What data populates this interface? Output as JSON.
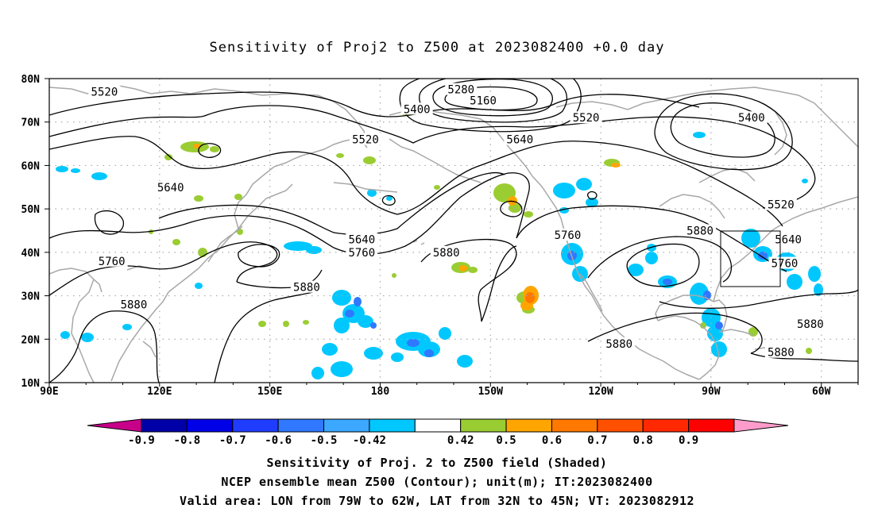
{
  "title": "Sensitivity of Proj2 to Z500 at 2023082400 +0.0 day",
  "lat_labels": [
    "80N",
    "70N",
    "60N",
    "50N",
    "40N",
    "30N",
    "20N",
    "10N"
  ],
  "lon_labels": [
    "90E",
    "120E",
    "150E",
    "180",
    "150W",
    "120W",
    "90W",
    "60W"
  ],
  "contour_labels": [
    {
      "text": "5520",
      "lon": 105,
      "lat": 77
    },
    {
      "text": "5280",
      "lon": -158,
      "lat": 77.5
    },
    {
      "text": "5160",
      "lon": -152,
      "lat": 75
    },
    {
      "text": "5400",
      "lon": -170,
      "lat": 73
    },
    {
      "text": "5520",
      "lon": -124,
      "lat": 71
    },
    {
      "text": "5400",
      "lon": -79,
      "lat": 71
    },
    {
      "text": "5520",
      "lon": -184,
      "lat": 66
    },
    {
      "text": "5640",
      "lon": -142,
      "lat": 66
    },
    {
      "text": "5640",
      "lon": 123,
      "lat": 55
    },
    {
      "text": "5520",
      "lon": -71,
      "lat": 51
    },
    {
      "text": "5880",
      "lon": -93,
      "lat": 45
    },
    {
      "text": "5760",
      "lon": -129,
      "lat": 44
    },
    {
      "text": "5640",
      "lon": -69,
      "lat": 43
    },
    {
      "text": "5640",
      "lon": -185,
      "lat": 43
    },
    {
      "text": "5760",
      "lon": -185,
      "lat": 40
    },
    {
      "text": "5880",
      "lon": -162,
      "lat": 40
    },
    {
      "text": "5760",
      "lon": 107,
      "lat": 38
    },
    {
      "text": "5760",
      "lon": -70,
      "lat": 37.5
    },
    {
      "text": "5880",
      "lon": 160,
      "lat": 32
    },
    {
      "text": "5880",
      "lon": 113,
      "lat": 28
    },
    {
      "text": "5880",
      "lon": -63,
      "lat": 23.5
    },
    {
      "text": "5880",
      "lon": -115,
      "lat": 19
    },
    {
      "text": "5880",
      "lon": -71,
      "lat": 17
    }
  ],
  "valid_area": {
    "lon_min": -79,
    "lon_max": -62,
    "lat_min": 32,
    "lat_max": 45
  },
  "colorbar": {
    "labels": [
      "-0.9",
      "-0.8",
      "-0.7",
      "-0.6",
      "-0.5",
      "-0.42",
      "0.42",
      "0.5",
      "0.6",
      "0.7",
      "0.8",
      "0.9"
    ],
    "colors": [
      "#c80089",
      "#0000a8",
      "#0000e8",
      "#1f3cff",
      "#2f78ff",
      "#3ca8ff",
      "#00c8ff",
      "#ffffff",
      "#9acd32",
      "#ffa500",
      "#ff7800",
      "#ff5000",
      "#ff2800",
      "#ff0000",
      "#ff9ccc"
    ]
  },
  "caption": {
    "line1": "Sensitivity of Proj. 2 to Z500 field (Shaded)",
    "line2": "NCEP ensemble mean Z500 (Contour); unit(m); IT:2023082400",
    "line3": "Valid area: LON from 79W to 62W, LAT from 32N to 45N; VT: 2023082912"
  }
}
